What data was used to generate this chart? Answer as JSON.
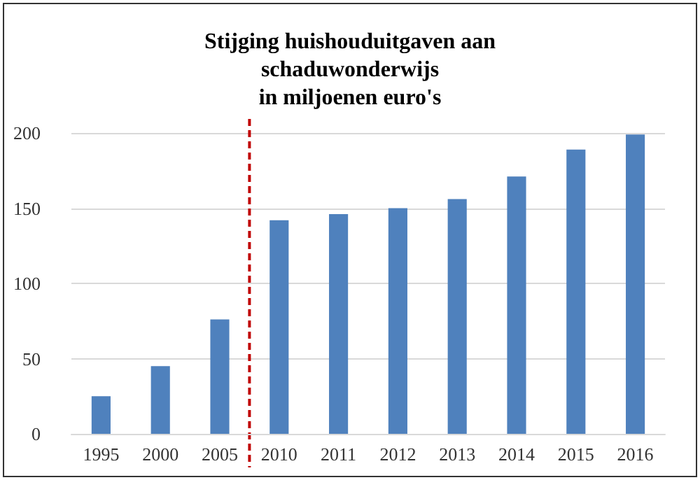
{
  "chart_data": {
    "type": "bar",
    "title": "Stijging huishouduitgaven aan\nschaduwonderwijs\nin miljoenen euro's",
    "categories": [
      "1995",
      "2000",
      "2005",
      "2010",
      "2011",
      "2012",
      "2013",
      "2014",
      "2015",
      "2016"
    ],
    "values": [
      25,
      45,
      76,
      142,
      146,
      150,
      156,
      171,
      189,
      199
    ],
    "color": "#4f81bd",
    "ylim": [
      0,
      200
    ],
    "yticks": [
      0,
      50,
      100,
      150,
      200
    ],
    "grid": "y",
    "ref_lines": [
      {
        "axis": "x",
        "value": "2005",
        "color": "#c00000",
        "line_style": "dashed"
      }
    ]
  }
}
